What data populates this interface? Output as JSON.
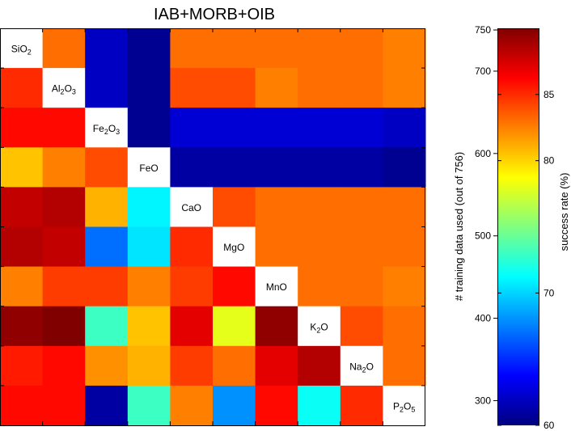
{
  "chart_data": {
    "type": "heatmap",
    "title": "IAB+MORB+OIB",
    "oxides": [
      {
        "name": "SiO2",
        "base": "SiO",
        "sub": "2",
        "tail": ""
      },
      {
        "name": "Al2O3",
        "base": "Al",
        "sub": "2",
        "tail": "O",
        "sub2": "3"
      },
      {
        "name": "Fe2O3",
        "base": "Fe",
        "sub": "2",
        "tail": "O",
        "sub2": "3"
      },
      {
        "name": "FeO",
        "base": "FeO",
        "sub": "",
        "tail": ""
      },
      {
        "name": "CaO",
        "base": "CaO",
        "sub": "",
        "tail": ""
      },
      {
        "name": "MgO",
        "base": "MgO",
        "sub": "",
        "tail": ""
      },
      {
        "name": "MnO",
        "base": "MnO",
        "sub": "",
        "tail": ""
      },
      {
        "name": "K2O",
        "base": "K",
        "sub": "2",
        "tail": "O"
      },
      {
        "name": "Na2O",
        "base": "Na",
        "sub": "2",
        "tail": "O"
      },
      {
        "name": "P2O5",
        "base": "P",
        "sub": "2",
        "tail": "O",
        "sub2": "5"
      }
    ],
    "matrix": [
      [
        null,
        83,
        62,
        60.5,
        83,
        83,
        83,
        83,
        83,
        82.5
      ],
      [
        85,
        null,
        62,
        60.5,
        84,
        84,
        82.5,
        83,
        83,
        82.5
      ],
      [
        86,
        86,
        null,
        60.5,
        62.5,
        62.5,
        62.5,
        62.5,
        62.5,
        62
      ],
      [
        80.5,
        82.5,
        84,
        null,
        61,
        61,
        61,
        61,
        61,
        60.5
      ],
      [
        88,
        88.5,
        81,
        71,
        null,
        84,
        83,
        83,
        83,
        83
      ],
      [
        88.5,
        88,
        67,
        70.5,
        85,
        null,
        83,
        83,
        83,
        83
      ],
      [
        82.5,
        84.5,
        84.5,
        82.5,
        84.5,
        86,
        null,
        83,
        83,
        82.5
      ],
      [
        89.5,
        90,
        73,
        80.5,
        87,
        78,
        89.5,
        null,
        84,
        83
      ],
      [
        85.5,
        86,
        82,
        81,
        84.5,
        83,
        87,
        88.5,
        null,
        83
      ],
      [
        86,
        86,
        61,
        73,
        82.5,
        68,
        86,
        71.5,
        85,
        null
      ]
    ],
    "colorbar": {
      "colormap": "jet",
      "success_rate_label": "success rate (%)",
      "success_rate_range": [
        60,
        90
      ],
      "success_rate_ticks": [
        "60",
        "70",
        "80",
        "85"
      ],
      "success_rate_tick_values": [
        60,
        70,
        80,
        85
      ],
      "training_label": "# training data used (out of 756)",
      "training_ticks": [
        "300",
        "400",
        "500",
        "600",
        "700",
        "750"
      ],
      "training_tick_values": [
        300,
        400,
        500,
        600,
        700,
        750
      ],
      "training_range": [
        270,
        752
      ]
    }
  }
}
